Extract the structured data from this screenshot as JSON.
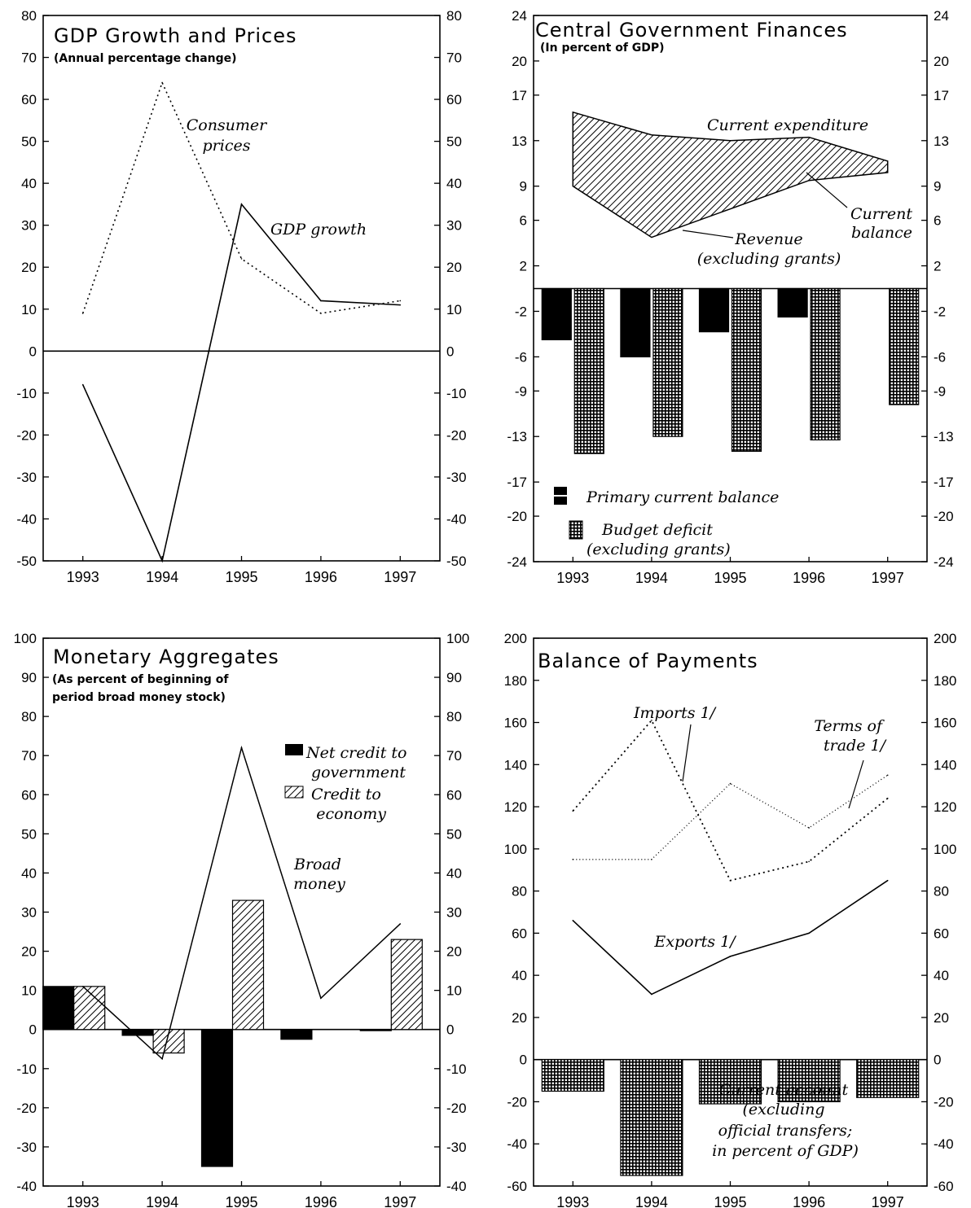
{
  "chart_data": [
    {
      "type": "line",
      "title": "GDP Growth and Prices",
      "subtitle": "(Annual percentage change)",
      "categories": [
        "1993",
        "1994",
        "1995",
        "1996",
        "1997"
      ],
      "ylim": [
        -50,
        80
      ],
      "yticks": [
        80,
        70,
        60,
        50,
        40,
        30,
        20,
        10,
        0,
        -10,
        -20,
        -30,
        -40,
        -50
      ],
      "series": [
        {
          "name": "Consumer prices",
          "label_lines": [
            "Consumer",
            "prices"
          ],
          "style": "dotted",
          "values": [
            9,
            64,
            22,
            9,
            12
          ]
        },
        {
          "name": "GDP growth",
          "label_lines": [
            "GDP growth"
          ],
          "style": "solid",
          "values": [
            -8,
            -50,
            35,
            12,
            11
          ]
        }
      ]
    },
    {
      "type": "area+bar",
      "title": "Central Government Finances",
      "subtitle": "(In percent of GDP)",
      "categories": [
        "1993",
        "1994",
        "1995",
        "1996",
        "1997"
      ],
      "ylim": [
        -24,
        24
      ],
      "yticks": [
        "24",
        "20",
        "17",
        "13",
        "9",
        "6",
        "2",
        "-2",
        "-6",
        "-9",
        "-13",
        "-17",
        "-20",
        "-24"
      ],
      "ytick_values": [
        24,
        20,
        17,
        13,
        9,
        6,
        2,
        -2,
        -6,
        -9,
        -13,
        -17,
        -20,
        -24
      ],
      "area": {
        "upper": {
          "name": "Current expenditure",
          "values": [
            15.5,
            13.5,
            13,
            13.3,
            11.2
          ]
        },
        "lower": {
          "name": "Revenue (excluding grants)",
          "values": [
            9,
            4.5,
            7,
            9.5,
            10.2
          ]
        },
        "fill_name": "Current balance"
      },
      "annotations": {
        "current_expenditure": "Current expenditure",
        "current_balance": [
          "Current",
          "balance"
        ],
        "revenue": [
          "Revenue",
          "(excluding grants)"
        ]
      },
      "series": [
        {
          "name": "Primary current balance",
          "values": [
            -4.5,
            -6,
            -3.8,
            -2.5,
            0
          ]
        },
        {
          "name": "Budget deficit (excluding grants)",
          "label_lines": [
            "Budget deficit",
            "(excluding grants)"
          ],
          "values": [
            -14.5,
            -13,
            -14.3,
            -13.3,
            -10.2
          ]
        }
      ],
      "legend": [
        "Primary current balance",
        "Budget deficit",
        "(excluding grants)"
      ]
    },
    {
      "type": "bar+line",
      "title": "Monetary Aggregates",
      "subtitle_lines": [
        "(As percent of beginning of",
        "period broad money stock)"
      ],
      "categories": [
        "1993",
        "1994",
        "1995",
        "1996",
        "1997"
      ],
      "ylim": [
        -40,
        100
      ],
      "yticks": [
        100,
        90,
        80,
        70,
        60,
        50,
        40,
        30,
        20,
        10,
        0,
        -10,
        -20,
        -30,
        -40
      ],
      "series": [
        {
          "name": "Net credit to government",
          "label_lines": [
            "Net credit to",
            "government"
          ],
          "values": [
            11,
            -1.5,
            -35,
            -2.5,
            -0.3
          ]
        },
        {
          "name": "Credit to economy",
          "label_lines": [
            "Credit to",
            "economy"
          ],
          "values": [
            11,
            -6,
            33,
            0,
            23
          ]
        },
        {
          "name": "Broad money",
          "label_lines": [
            "Broad",
            "money"
          ],
          "style": "solid",
          "values": [
            11,
            -7.5,
            72,
            8,
            27
          ]
        }
      ]
    },
    {
      "type": "line+bar",
      "title": "Balance of Payments",
      "categories": [
        "1993",
        "1994",
        "1995",
        "1996",
        "1997"
      ],
      "ylim": [
        -60,
        200
      ],
      "yticks": [
        200,
        180,
        160,
        140,
        120,
        100,
        80,
        60,
        40,
        20,
        0,
        -20,
        -40,
        -60
      ],
      "series": [
        {
          "name": "Imports 1/",
          "style": "dotted",
          "values": [
            118,
            161,
            85,
            94,
            124
          ]
        },
        {
          "name": "Terms of trade 1/",
          "label_lines": [
            "Terms of",
            "trade 1/"
          ],
          "style": "dotted-fine",
          "values": [
            95,
            95,
            131,
            110,
            135
          ]
        },
        {
          "name": "Exports 1/",
          "style": "solid",
          "values": [
            66,
            31,
            49,
            60,
            85
          ]
        },
        {
          "name": "Current account (excluding official transfers; in percent of GDP)",
          "label_lines": [
            "Current account",
            "(excluding",
            "official transfers;",
            "in percent of GDP)"
          ],
          "values": [
            -15,
            -55,
            -21,
            -20,
            -18
          ]
        }
      ]
    }
  ]
}
